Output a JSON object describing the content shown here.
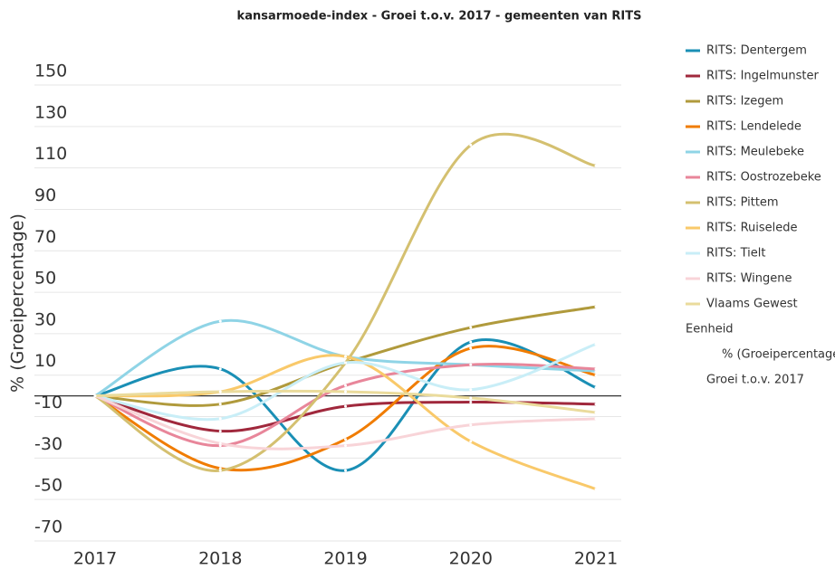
{
  "chart_data": {
    "type": "line",
    "title": "kansarmoede-index - Groei t.o.v. 2017 - gemeenten van RITS",
    "y_label": "% (Groeipercentage)",
    "categories": [
      "2017",
      "2018",
      "2019",
      "2020",
      "2021"
    ],
    "series": [
      {
        "name": "RITS: Dentergem",
        "color": "#1a8fb5",
        "values": [
          0,
          13,
          -36,
          26,
          4
        ]
      },
      {
        "name": "RITS: Ingelmunster",
        "color": "#a0283c",
        "values": [
          0,
          -17,
          -5,
          -3,
          -4
        ]
      },
      {
        "name": "RITS: Izegem",
        "color": "#b09a3c",
        "values": [
          0,
          -4,
          16,
          33,
          43
        ]
      },
      {
        "name": "RITS: Lendelede",
        "color": "#f07c00",
        "values": [
          0,
          -35,
          -21,
          23,
          10
        ]
      },
      {
        "name": "RITS: Meulebeke",
        "color": "#8fd4e6",
        "values": [
          0,
          36,
          19,
          15,
          12
        ]
      },
      {
        "name": "RITS: Oostrozebeke",
        "color": "#e8869a",
        "values": [
          0,
          -24,
          5,
          15,
          13
        ]
      },
      {
        "name": "RITS: Pittem",
        "color": "#d4c070",
        "values": [
          0,
          -36,
          16,
          121,
          111
        ]
      },
      {
        "name": "RITS: Ruiselede",
        "color": "#f9c96a",
        "values": [
          0,
          2,
          19,
          -22,
          -45
        ]
      },
      {
        "name": "RITS: Tielt",
        "color": "#c9eef7",
        "values": [
          0,
          -11,
          16,
          3,
          25
        ]
      },
      {
        "name": "RITS: Wingene",
        "color": "#f8d4d8",
        "values": [
          0,
          -23,
          -24,
          -14,
          -11
        ]
      },
      {
        "name": "Vlaams Gewest",
        "color": "#eadb9c",
        "values": [
          0,
          2,
          2,
          -1,
          -8
        ]
      }
    ],
    "legend_extra": [
      "Eenheid",
      "% (Groeipercentage)",
      "Groei t.o.v. 2017"
    ],
    "ylim": [
      -70,
      150
    ],
    "yticks": [
      150,
      130,
      110,
      90,
      70,
      50,
      30,
      10,
      -10,
      -30,
      -50,
      -70
    ],
    "grid": true
  }
}
